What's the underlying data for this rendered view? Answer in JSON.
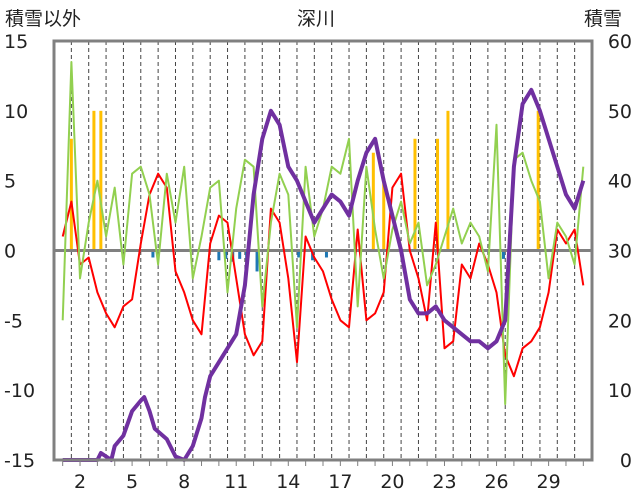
{
  "chart_data": {
    "type": "line",
    "title": "深川",
    "left_axis_label": "積雪以外",
    "right_axis_label": "積雪",
    "y_left": {
      "min": -15,
      "max": 15,
      "ticks": [
        15,
        10,
        5,
        0,
        -5,
        -10,
        -15
      ]
    },
    "y_right": {
      "min": 0,
      "max": 60,
      "ticks": [
        60,
        50,
        40,
        30,
        20,
        10,
        0
      ]
    },
    "x": {
      "min": 1,
      "max": 31,
      "tick_labels": [
        "2",
        "5",
        "8",
        "11",
        "14",
        "17",
        "20",
        "23",
        "26",
        "29"
      ],
      "minor_ticks_each_day": true
    },
    "grid": "vertical dashed lines at each day",
    "colors": {
      "temperature_red": "#ff0000",
      "green_series": "#92d050",
      "precip_bars": "#ffc000",
      "blue_bars": "#1f78b4",
      "snow_depth": "#7030a0",
      "zero_line": "#808080",
      "frame": "#808080"
    },
    "series": [
      {
        "axis": "left",
        "style": "line",
        "color": "#ff0000",
        "x": [
          1.0,
          1.5,
          2.0,
          2.5,
          3.0,
          3.5,
          4.0,
          4.5,
          5.0,
          5.5,
          6.0,
          6.5,
          7.0,
          7.5,
          8.0,
          8.5,
          9.0,
          9.5,
          10.0,
          10.5,
          11.0,
          11.5,
          12.0,
          12.5,
          13.0,
          13.5,
          14.0,
          14.5,
          15.0,
          15.5,
          16.0,
          16.5,
          17.0,
          17.5,
          18.0,
          18.5,
          19.0,
          19.5,
          20.0,
          20.5,
          21.0,
          21.5,
          22.0,
          22.5,
          23.0,
          23.5,
          24.0,
          24.5,
          25.0,
          25.5,
          26.0,
          26.5,
          27.0,
          27.5,
          28.0,
          28.5,
          29.0,
          29.5,
          30.0,
          30.5,
          31.0
        ],
        "y": [
          1.0,
          3.5,
          -1.0,
          -0.5,
          -3.0,
          -4.5,
          -5.5,
          -4.0,
          -3.5,
          0.5,
          4.0,
          5.5,
          4.5,
          -1.5,
          -3.0,
          -5.0,
          -6.0,
          0.5,
          2.5,
          2.0,
          -2.0,
          -6.0,
          -7.5,
          -6.5,
          3.0,
          2.0,
          -2.0,
          -8.0,
          1.0,
          -0.5,
          -1.5,
          -3.5,
          -5.0,
          -5.5,
          1.5,
          -5.0,
          -4.5,
          -3.0,
          4.5,
          5.5,
          0.0,
          -2.0,
          -5.0,
          2.0,
          -7.0,
          -6.5,
          -1.0,
          -2.0,
          0.5,
          -1.0,
          -3.0,
          -7.5,
          -9.0,
          -7.0,
          -6.5,
          -5.5,
          -3.0,
          1.5,
          0.5,
          1.5,
          -2.5
        ]
      },
      {
        "axis": "left",
        "style": "line",
        "color": "#92d050",
        "x": [
          1.0,
          1.5,
          2.0,
          2.5,
          3.0,
          3.5,
          4.0,
          4.5,
          5.0,
          5.5,
          6.0,
          6.5,
          7.0,
          7.5,
          8.0,
          8.5,
          9.0,
          9.5,
          10.0,
          10.5,
          11.0,
          11.5,
          12.0,
          12.5,
          13.0,
          13.5,
          14.0,
          14.5,
          15.0,
          15.5,
          16.0,
          16.5,
          17.0,
          17.5,
          18.0,
          18.5,
          19.0,
          19.5,
          20.0,
          20.5,
          21.0,
          21.5,
          22.0,
          22.5,
          23.0,
          23.5,
          24.0,
          24.5,
          25.0,
          25.5,
          26.0,
          26.5,
          27.0,
          27.5,
          28.0,
          28.5,
          29.0,
          29.5,
          30.0,
          30.5,
          31.0
        ],
        "y": [
          -5.0,
          13.5,
          -2.0,
          2.0,
          5.0,
          1.0,
          4.5,
          -1.0,
          5.5,
          6.0,
          4.0,
          -1.0,
          5.5,
          2.0,
          6.0,
          -2.0,
          1.0,
          4.5,
          5.0,
          -3.0,
          3.0,
          6.5,
          6.0,
          -4.0,
          2.0,
          5.5,
          4.0,
          -5.5,
          6.0,
          1.0,
          3.0,
          6.0,
          5.5,
          8.0,
          -4.0,
          6.0,
          1.5,
          -2.0,
          1.5,
          3.5,
          0.5,
          2.0,
          -2.5,
          -1.0,
          1.0,
          3.0,
          0.5,
          2.0,
          1.0,
          -1.5,
          9.0,
          -11.0,
          6.5,
          7.0,
          5.0,
          3.5,
          -2.0,
          2.0,
          1.0,
          -1.0,
          6.0
        ]
      },
      {
        "axis": "right",
        "style": "line",
        "color": "#7030a0",
        "x": [
          1.0,
          3.0,
          3.2,
          3.8,
          4.0,
          4.5,
          5.0,
          5.5,
          5.7,
          6.0,
          6.3,
          7.0,
          7.5,
          8.0,
          8.5,
          9.0,
          9.2,
          9.5,
          10.0,
          10.5,
          11.0,
          11.5,
          12.0,
          12.5,
          13.0,
          13.5,
          14.0,
          14.5,
          15.0,
          15.5,
          16.0,
          16.5,
          17.0,
          17.5,
          18.0,
          18.5,
          19.0,
          19.5,
          20.0,
          20.5,
          21.0,
          21.5,
          22.0,
          22.5,
          23.0,
          23.5,
          24.0,
          24.5,
          25.0,
          25.5,
          26.0,
          26.5,
          27.0,
          27.5,
          28.0,
          28.5,
          29.0,
          29.5,
          30.0,
          30.5,
          31.0
        ],
        "y": [
          0.0,
          0.0,
          1.0,
          0.0,
          2.0,
          3.5,
          7.0,
          8.5,
          9.0,
          7.0,
          4.5,
          3.0,
          0.5,
          0.0,
          2.0,
          6.0,
          9.0,
          12.0,
          14.0,
          16.0,
          18.0,
          25.0,
          38.0,
          46.0,
          50.0,
          48.0,
          42.0,
          40.0,
          37.0,
          34.0,
          36.0,
          38.0,
          37.0,
          35.0,
          40.0,
          44.0,
          46.0,
          40.0,
          35.0,
          30.0,
          23.0,
          21.0,
          21.0,
          22.0,
          20.0,
          19.0,
          18.0,
          17.0,
          17.0,
          16.0,
          17.0,
          20.0,
          42.0,
          51.0,
          53.0,
          50.0,
          46.0,
          42.0,
          38.0,
          36.0,
          40.0
        ]
      },
      {
        "axis": "left",
        "style": "bars",
        "color": "#ffc000",
        "x": [
          1.5,
          2.8,
          3.2,
          18.9,
          19.5,
          21.3,
          22.6,
          23.2,
          28.4
        ],
        "y": [
          8.0,
          10.0,
          10.0,
          7.0,
          5.0,
          8.0,
          8.0,
          10.0,
          10.0
        ]
      },
      {
        "axis": "left",
        "style": "bars",
        "color": "#1f78b4",
        "x": [
          6.2,
          10.0,
          10.4,
          10.8,
          11.2,
          11.6,
          12.2,
          14.6,
          15.4,
          16.2,
          26.4
        ],
        "y": [
          -0.5,
          -0.7,
          -0.6,
          -0.8,
          -0.6,
          -0.7,
          -1.5,
          -0.5,
          -0.7,
          -0.5,
          -0.6
        ]
      }
    ]
  }
}
